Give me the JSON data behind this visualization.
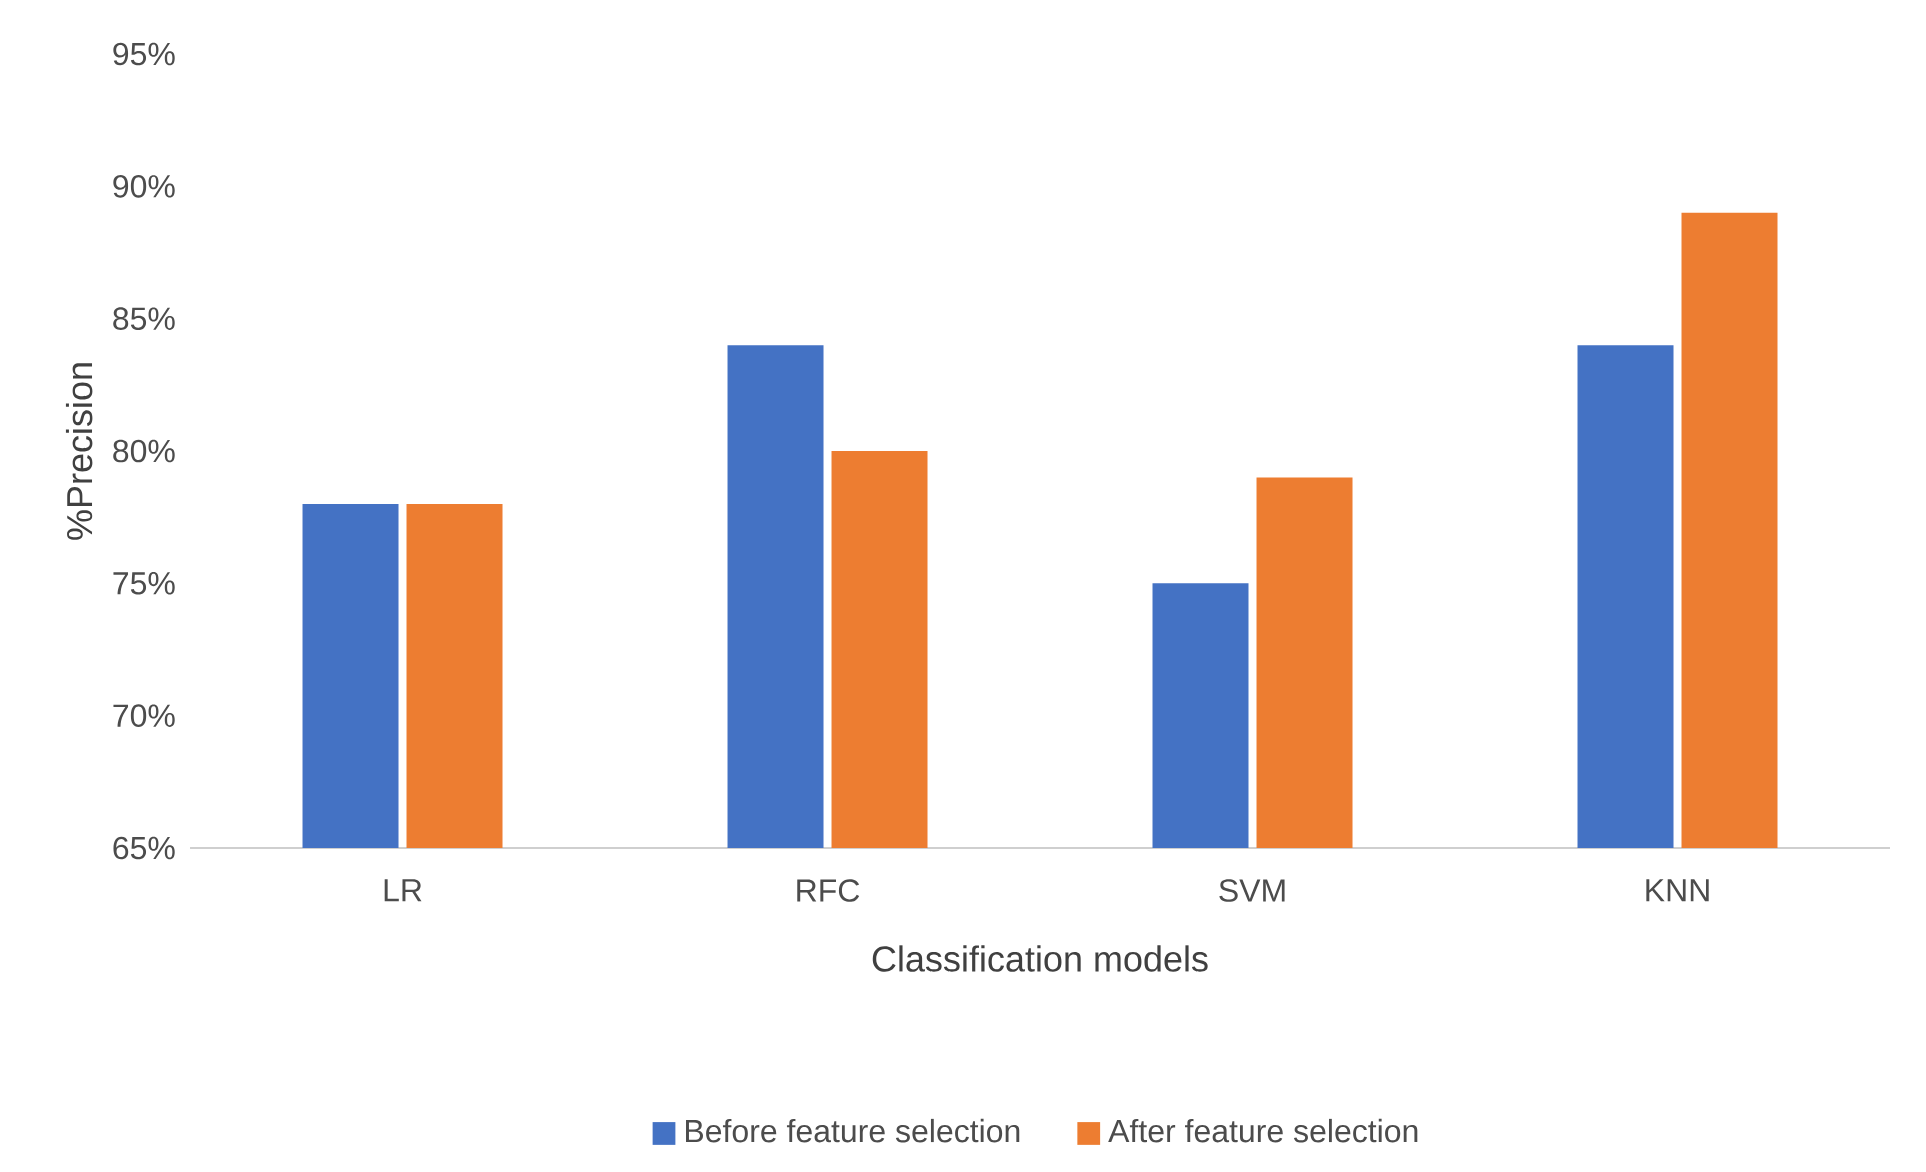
{
  "chart_data": {
    "type": "bar",
    "xlabel": "Classification models",
    "ylabel": "%Precision",
    "categories": [
      "LR",
      "RFC",
      "SVM",
      "KNN"
    ],
    "series": [
      {
        "name": "Before feature selection",
        "color": "#4472c4",
        "values": [
          78,
          84,
          75,
          84
        ]
      },
      {
        "name": "After feature selection",
        "color": "#ed7d31",
        "values": [
          78,
          80,
          79,
          89
        ]
      }
    ],
    "ylim": [
      65,
      95
    ],
    "yticks": [
      {
        "value": 65,
        "label": "65%"
      },
      {
        "value": 70,
        "label": "70%"
      },
      {
        "value": 75,
        "label": "75%"
      },
      {
        "value": 80,
        "label": "80%"
      },
      {
        "value": 85,
        "label": "85%"
      },
      {
        "value": 90,
        "label": "90%"
      },
      {
        "value": 95,
        "label": "95%"
      }
    ],
    "legend": "bottom"
  }
}
